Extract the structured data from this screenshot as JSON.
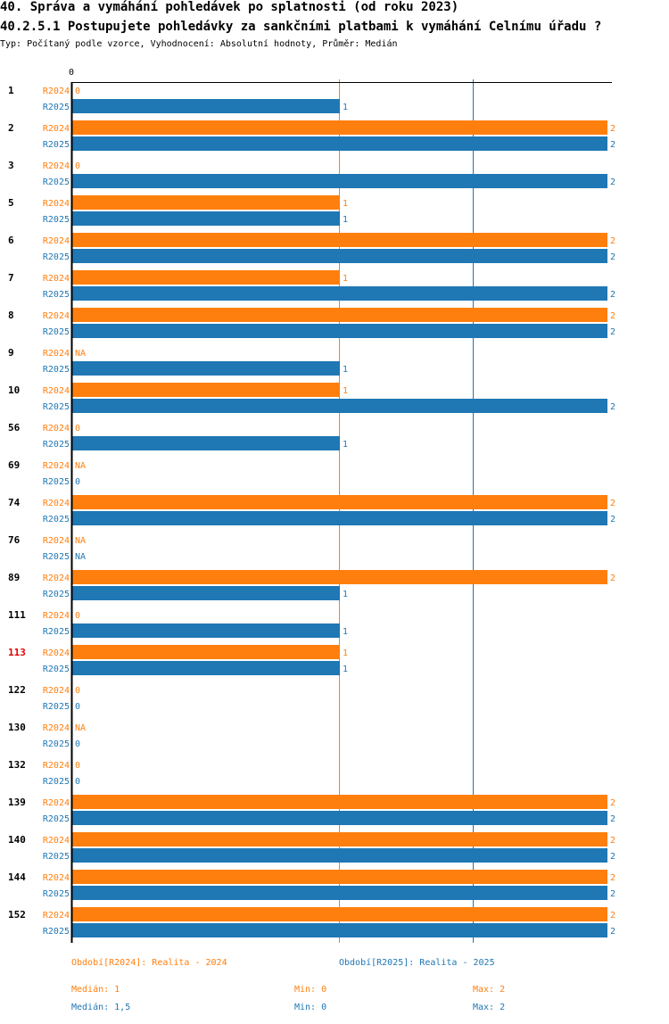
{
  "header": {
    "title": "40. Správa a vymáhání pohledávek po splatnosti (od roku 2023)",
    "question": "40.2.5.1 Postupujete pohledávky za sankčními platbami k vymáhání Celnímu úřadu ?",
    "subtitle": "Typ: Počítaný podle vzorce, Vyhodnocení: Absolutní hodnoty, Průměr: Medián"
  },
  "colors": {
    "r2024": "#ff7f0e",
    "r2025": "#1f77b4",
    "highlight": "#e00000"
  },
  "chart_data": {
    "type": "bar",
    "orientation": "horizontal",
    "xlim": [
      0,
      2
    ],
    "x_tick_labels": [
      "0"
    ],
    "series": [
      {
        "name": "R2024",
        "label": "R2024"
      },
      {
        "name": "R2025",
        "label": "R2025"
      }
    ],
    "highlight_category": "113",
    "categories": [
      {
        "id": "1",
        "r2024": 0,
        "r2025": 1
      },
      {
        "id": "2",
        "r2024": 2,
        "r2025": 2
      },
      {
        "id": "3",
        "r2024": 0,
        "r2025": 2
      },
      {
        "id": "5",
        "r2024": 1,
        "r2025": 1
      },
      {
        "id": "6",
        "r2024": 2,
        "r2025": 2
      },
      {
        "id": "7",
        "r2024": 1,
        "r2025": 2
      },
      {
        "id": "8",
        "r2024": 2,
        "r2025": 2
      },
      {
        "id": "9",
        "r2024": "NA",
        "r2025": 1
      },
      {
        "id": "10",
        "r2024": 1,
        "r2025": 2
      },
      {
        "id": "56",
        "r2024": 0,
        "r2025": 1
      },
      {
        "id": "69",
        "r2024": "NA",
        "r2025": 0
      },
      {
        "id": "74",
        "r2024": 2,
        "r2025": 2
      },
      {
        "id": "76",
        "r2024": "NA",
        "r2025": "NA"
      },
      {
        "id": "89",
        "r2024": 2,
        "r2025": 1
      },
      {
        "id": "111",
        "r2024": 0,
        "r2025": 1
      },
      {
        "id": "113",
        "r2024": 1,
        "r2025": 1
      },
      {
        "id": "122",
        "r2024": 0,
        "r2025": 0
      },
      {
        "id": "130",
        "r2024": "NA",
        "r2025": 0
      },
      {
        "id": "132",
        "r2024": 0,
        "r2025": 0
      },
      {
        "id": "139",
        "r2024": 2,
        "r2025": 2
      },
      {
        "id": "140",
        "r2024": 2,
        "r2025": 2
      },
      {
        "id": "144",
        "r2024": 2,
        "r2025": 2
      },
      {
        "id": "152",
        "r2024": 2,
        "r2025": 2
      }
    ],
    "reference_lines": [
      {
        "series": "R2024",
        "stat": "median",
        "value": 1
      },
      {
        "series": "R2025",
        "stat": "median",
        "value": 1.5
      }
    ]
  },
  "legend": {
    "r2024_name": "Období[R2024]: Realita - 2024",
    "r2025_name": "Období[R2025]: Realita - 2025",
    "r2024_median": "Medián: 1",
    "r2024_min": "Min: 0",
    "r2024_max": "Max: 2",
    "r2025_median": "Medián: 1,5",
    "r2025_min": "Min: 0",
    "r2025_max": "Max: 2"
  }
}
